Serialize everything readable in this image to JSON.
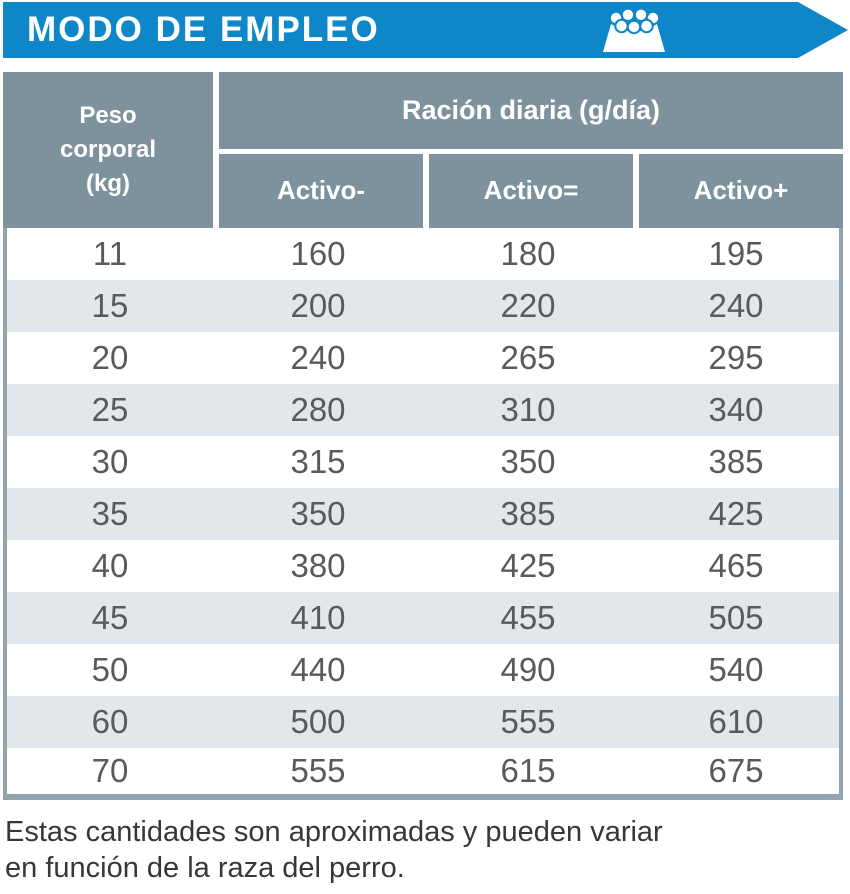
{
  "banner": {
    "title": "MODO DE EMPLEO",
    "icon": "dog-bowl-icon"
  },
  "table": {
    "header": {
      "weight_label": "Peso\ncorporal\n(kg)",
      "ration_label": "Ración diaria (g/día)",
      "activity_levels": [
        "Activo-",
        "Activo=",
        "Activo+"
      ]
    },
    "rows": [
      {
        "weight": "11",
        "values": [
          "160",
          "180",
          "195"
        ]
      },
      {
        "weight": "15",
        "values": [
          "200",
          "220",
          "240"
        ]
      },
      {
        "weight": "20",
        "values": [
          "240",
          "265",
          "295"
        ]
      },
      {
        "weight": "25",
        "values": [
          "280",
          "310",
          "340"
        ]
      },
      {
        "weight": "30",
        "values": [
          "315",
          "350",
          "385"
        ]
      },
      {
        "weight": "35",
        "values": [
          "350",
          "385",
          "425"
        ]
      },
      {
        "weight": "40",
        "values": [
          "380",
          "425",
          "465"
        ]
      },
      {
        "weight": "45",
        "values": [
          "410",
          "455",
          "505"
        ]
      },
      {
        "weight": "50",
        "values": [
          "440",
          "490",
          "540"
        ]
      },
      {
        "weight": "60",
        "values": [
          "500",
          "555",
          "610"
        ]
      },
      {
        "weight": "70",
        "values": [
          "555",
          "615",
          "675"
        ]
      }
    ]
  },
  "footer": {
    "note": "Estas cantidades son aproximadas y pueden variar\nen función de la raza del perro."
  },
  "colors": {
    "banner_blue": "#0E87C8",
    "header_gray": "#7E929D",
    "row_stripe": "#E2E7EB",
    "table_border": "#94A4AE",
    "data_text": "#595A5C"
  }
}
